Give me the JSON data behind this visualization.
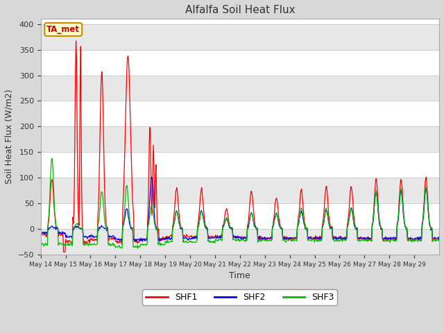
{
  "title": "Alfalfa Soil Heat Flux",
  "xlabel": "Time",
  "ylabel": "Soil Heat Flux (W/m2)",
  "ylim": [
    -50,
    410
  ],
  "yticks": [
    -50,
    0,
    50,
    100,
    150,
    200,
    250,
    300,
    350,
    400
  ],
  "background_color": "#d8d8d8",
  "plot_bg_color": "#ffffff",
  "annotation_text": "TA_met",
  "annotation_bg": "#ffffcc",
  "annotation_border": "#cc8800",
  "series_colors": [
    "#ff0000",
    "#0000ee",
    "#00bb00"
  ],
  "series_labels": [
    "SHF1",
    "SHF2",
    "SHF3"
  ],
  "x_tick_labels": [
    "May 14",
    "May 15",
    "May 16",
    "May 17",
    "May 18",
    "May 19",
    "May 20",
    "May 21",
    "May 22",
    "May 23",
    "May 24",
    "May 25",
    "May 26",
    "May 27",
    "May 28",
    "May 29"
  ],
  "num_days": 16,
  "pts_per_day": 48
}
